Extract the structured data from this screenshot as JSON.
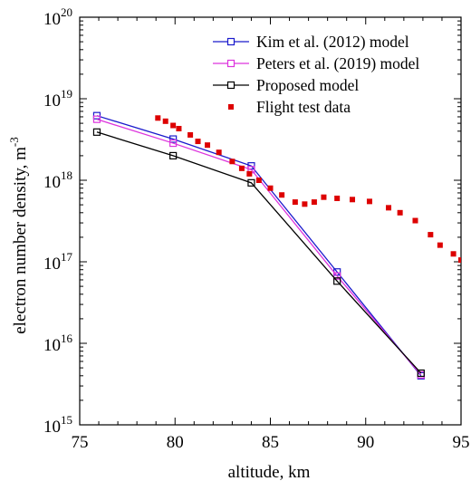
{
  "chart_data": {
    "type": "line",
    "xlabel": "altitude, km",
    "ylabel_base": "electron number density, m",
    "ylabel_exp": "-3",
    "xlim": [
      75,
      95
    ],
    "x_ticks": [
      75,
      80,
      85,
      90,
      95
    ],
    "x_tick_labels": [
      "75",
      "80",
      "85",
      "90",
      "95"
    ],
    "ylim_log10": [
      15,
      20
    ],
    "y_tick_exponents": [
      15,
      16,
      17,
      18,
      19,
      20
    ],
    "y_tick_base": "10",
    "y_tick_exp_labels": [
      "15",
      "16",
      "17",
      "18",
      "19",
      "20"
    ],
    "y_scale": "log",
    "grid": false,
    "legend_position": "top-right",
    "series": [
      {
        "name": "Kim et al. (2012) model",
        "color": "#1a1acc",
        "marker": "open-square",
        "x": [
          75.9,
          79.9,
          84.0,
          88.5,
          92.9
        ],
        "y": [
          6.2e+18,
          3.2e+18,
          1.5e+18,
          7.5e+16,
          4000000000000000.0
        ]
      },
      {
        "name": "Peters et al. (2019) model",
        "color": "#dd33dd",
        "marker": "open-square",
        "x": [
          75.9,
          79.9,
          84.0,
          88.5,
          92.9
        ],
        "y": [
          5.6e+18,
          2.85e+18,
          1.35e+18,
          6.7e+16,
          4100000000000000.0
        ]
      },
      {
        "name": "Proposed model",
        "color": "#000000",
        "marker": "open-square",
        "x": [
          75.9,
          79.9,
          84.0,
          88.5,
          92.9
        ],
        "y": [
          3.9e+18,
          2e+18,
          9.3e+17,
          5.8e+16,
          4300000000000000.0
        ]
      },
      {
        "name": "Flight test data",
        "color": "#dd0000",
        "marker": "filled-square",
        "x": [
          79.1,
          79.5,
          79.9,
          80.2,
          80.8,
          81.2,
          81.7,
          82.3,
          83.0,
          83.5,
          83.9,
          84.4,
          85.0,
          85.6,
          86.3,
          86.8,
          87.3,
          87.8,
          88.5,
          89.3,
          90.2,
          91.2,
          91.8,
          92.6,
          93.4,
          93.9,
          94.6,
          95.0
        ],
        "y": [
          5.8e+18,
          5.3e+18,
          4.7e+18,
          4.3e+18,
          3.6e+18,
          3e+18,
          2.7e+18,
          2.2e+18,
          1.7e+18,
          1.4e+18,
          1.2e+18,
          1e+18,
          8e+17,
          6.6e+17,
          5.4e+17,
          5.1e+17,
          5.4e+17,
          6.2e+17,
          6e+17,
          5.8e+17,
          5.5e+17,
          4.6e+17,
          4e+17,
          3.2e+17,
          2.15e+17,
          1.6e+17,
          1.25e+17,
          1.05e+17
        ]
      }
    ]
  }
}
